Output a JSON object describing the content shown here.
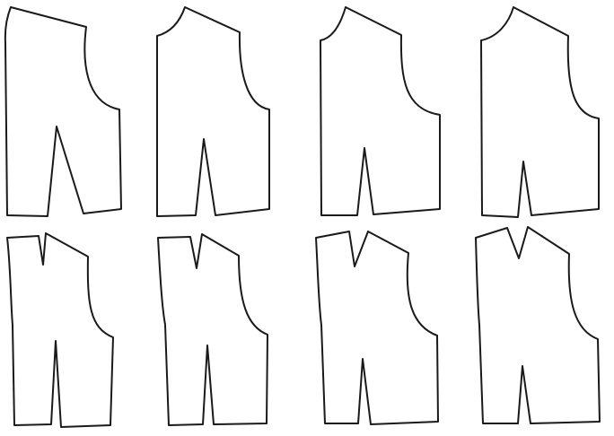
{
  "diagram": {
    "kind": "sewing pattern pieces (bodice front variations)",
    "rows": 2,
    "columns": 4,
    "line_color": "#1a1a1a",
    "background_color": "#ffffff",
    "pieces": [
      {
        "row": 1,
        "column": 1,
        "shoulder_dart": false,
        "waist_dart": true
      },
      {
        "row": 1,
        "column": 2,
        "shoulder_dart": false,
        "waist_dart": true
      },
      {
        "row": 1,
        "column": 3,
        "shoulder_dart": false,
        "waist_dart": true
      },
      {
        "row": 1,
        "column": 4,
        "shoulder_dart": false,
        "waist_dart": true
      },
      {
        "row": 2,
        "column": 1,
        "shoulder_dart": true,
        "waist_dart": true
      },
      {
        "row": 2,
        "column": 2,
        "shoulder_dart": true,
        "waist_dart": true
      },
      {
        "row": 2,
        "column": 3,
        "shoulder_dart": true,
        "waist_dart": true
      },
      {
        "row": 2,
        "column": 4,
        "shoulder_dart": true,
        "waist_dart": true
      }
    ]
  }
}
